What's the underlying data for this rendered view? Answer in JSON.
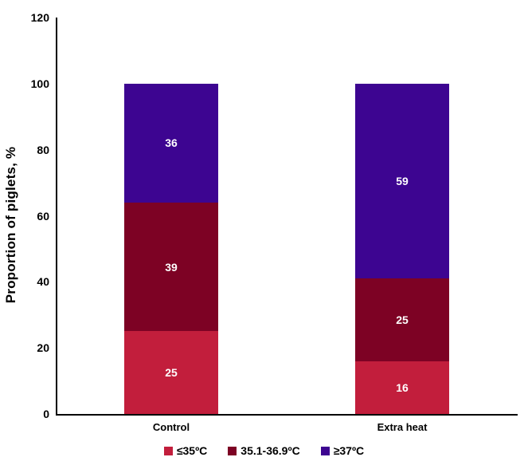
{
  "chart_data": {
    "type": "bar",
    "stacked": true,
    "title": "",
    "xlabel": "",
    "ylabel": "Proportion of piglets, %",
    "ylim": [
      0,
      120
    ],
    "yticks": [
      0,
      20,
      40,
      60,
      80,
      100,
      120
    ],
    "grid": false,
    "legend_position": "bottom",
    "value_label_color": "#ffffff",
    "categories": [
      "Control",
      "Extra heat"
    ],
    "series": [
      {
        "name": "≤35ºC",
        "color": "#c21e3c",
        "values": [
          25,
          16
        ]
      },
      {
        "name": "35.1-36.9ºC",
        "color": "#7d0224",
        "values": [
          39,
          25
        ]
      },
      {
        "name": "≥37ºC",
        "color": "#3d0591",
        "values": [
          36,
          59
        ]
      }
    ]
  }
}
